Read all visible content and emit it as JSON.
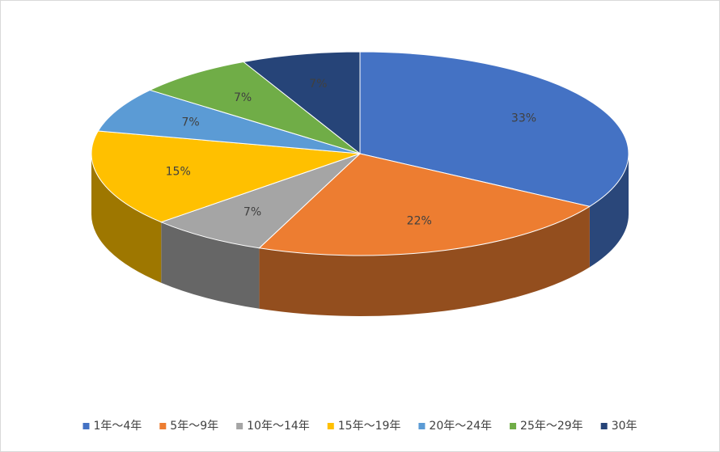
{
  "chart_data": {
    "type": "pie3d",
    "categories": [
      "1年～4年",
      "5年～9年",
      "10年～14年",
      "15年～19年",
      "20年～24年",
      "25年～29年",
      "30年"
    ],
    "values": [
      33,
      22,
      7,
      15,
      7,
      7,
      7
    ],
    "value_labels": [
      "33%",
      "22%",
      "7%",
      "15%",
      "7%",
      "7%",
      "7%"
    ],
    "colors": [
      "#4472c4",
      "#ed7d31",
      "#a5a5a5",
      "#ffc000",
      "#5b9bd5",
      "#70ad47",
      "#264478"
    ],
    "legend": "bottom"
  }
}
